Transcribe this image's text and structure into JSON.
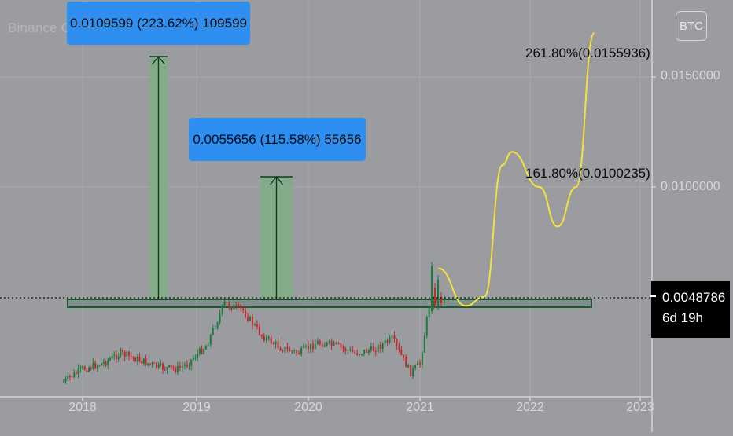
{
  "watermark": "Binance Coin / Bitcoin, 1W, BINANCE",
  "badge": "BTC",
  "annotations": {
    "measure_1": "0.0109599 (223.62%) 109599",
    "measure_2": "0.0055656 (115.58%) 55656",
    "fib_261": "261.80%(0.0155936)",
    "fib_161": "161.80%(0.0100235)"
  },
  "price_tag": {
    "price": "0.0048786",
    "countdown": "6d 19h"
  },
  "colors": {
    "background": "#9a9ca0",
    "candle_up": "#1d7a3e",
    "candle_down": "#c8262c",
    "measure_label": "#2f8ff0",
    "measure_fill": "#7fae86",
    "projection": "#f4e23a",
    "support_zone": "#1d5a34"
  },
  "chart_data": {
    "type": "candlestick",
    "title": "Binance Coin / Bitcoin, 1W, BINANCE",
    "x_tick_labels": [
      "2018",
      "2019",
      "2020",
      "2021",
      "2022",
      "2023"
    ],
    "y_tick_labels": [
      "0.0150000",
      "0.0100000"
    ],
    "last_price": 0.0048786,
    "weekly_close_approx": [
      {
        "date": "2017-11",
        "close": 0.00018
      },
      {
        "date": "2018-01",
        "close": 0.0009
      },
      {
        "date": "2018-03",
        "close": 0.0012
      },
      {
        "date": "2018-05",
        "close": 0.0018
      },
      {
        "date": "2018-07",
        "close": 0.0014
      },
      {
        "date": "2018-09",
        "close": 0.001
      },
      {
        "date": "2018-11",
        "close": 0.0009
      },
      {
        "date": "2018-12",
        "close": 0.0012
      },
      {
        "date": "2019-02",
        "close": 0.0022
      },
      {
        "date": "2019-04",
        "close": 0.0046
      },
      {
        "date": "2019-06",
        "close": 0.0042
      },
      {
        "date": "2019-08",
        "close": 0.0028
      },
      {
        "date": "2019-10",
        "close": 0.0021
      },
      {
        "date": "2019-12",
        "close": 0.0018
      },
      {
        "date": "2020-02",
        "close": 0.0024
      },
      {
        "date": "2020-04",
        "close": 0.0022
      },
      {
        "date": "2020-06",
        "close": 0.0018
      },
      {
        "date": "2020-08",
        "close": 0.002
      },
      {
        "date": "2020-10",
        "close": 0.0026
      },
      {
        "date": "2020-12",
        "close": 0.0007
      },
      {
        "date": "2021-01",
        "close": 0.0012
      },
      {
        "date": "2021-02",
        "close": 0.0045
      },
      {
        "date": "2021-03",
        "close": 0.0048786
      }
    ],
    "support_zone": [
      0.0044,
      0.005
    ],
    "measures": [
      {
        "label": "0.0109599 (223.62%) 109599",
        "from": 0.0049,
        "to": 0.0159
      },
      {
        "label": "0.0055656 (115.58%) 55656",
        "from": 0.0049,
        "to": 0.0105
      }
    ],
    "fib_levels": [
      {
        "label": "261.80%(0.0155936)",
        "value": 0.0155936
      },
      {
        "label": "161.80%(0.0100235)",
        "value": 0.0100235
      }
    ],
    "projection_path": [
      {
        "date": "2021-03",
        "value": 0.0063
      },
      {
        "date": "2021-06",
        "value": 0.0046
      },
      {
        "date": "2021-08",
        "value": 0.005
      },
      {
        "date": "2021-10",
        "value": 0.011
      },
      {
        "date": "2021-11",
        "value": 0.0116
      },
      {
        "date": "2022-02",
        "value": 0.01
      },
      {
        "date": "2022-04",
        "value": 0.0082
      },
      {
        "date": "2022-06",
        "value": 0.01
      },
      {
        "date": "2022-08",
        "value": 0.017
      }
    ]
  }
}
